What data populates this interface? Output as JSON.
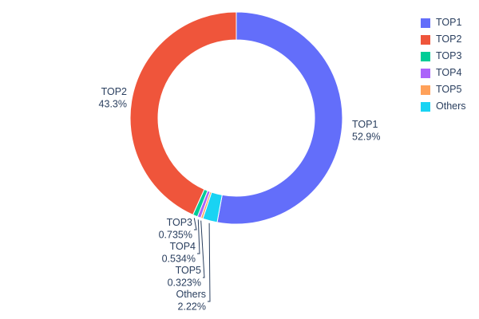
{
  "chart_data": {
    "type": "pie",
    "hole": 0.74,
    "title": "",
    "legend_position": "right",
    "background_color": "#ffffff",
    "text_color": "#2a3f5f",
    "labels": [
      "TOP1",
      "TOP2",
      "TOP3",
      "TOP4",
      "TOP5",
      "Others"
    ],
    "values": [
      52.9,
      43.3,
      0.735,
      0.534,
      0.323,
      2.22
    ],
    "slices_clockwise_from_top": [
      {
        "label": "TOP1",
        "value": 52.9,
        "percent_label": "52.9%",
        "color": "#636efa"
      },
      {
        "label": "Others",
        "value": 2.22,
        "percent_label": "2.22%",
        "color": "#19d3f3"
      },
      {
        "label": "TOP5",
        "value": 0.323,
        "percent_label": "0.323%",
        "color": "#ffa15a"
      },
      {
        "label": "TOP4",
        "value": 0.534,
        "percent_label": "0.534%",
        "color": "#ab63fa"
      },
      {
        "label": "TOP3",
        "value": 0.735,
        "percent_label": "0.735%",
        "color": "#00cc96"
      },
      {
        "label": "TOP2",
        "value": 43.3,
        "percent_label": "43.3%",
        "color": "#ef553b"
      }
    ],
    "legend_items": [
      {
        "label": "TOP1",
        "color": "#636efa"
      },
      {
        "label": "TOP2",
        "color": "#ef553b"
      },
      {
        "label": "TOP3",
        "color": "#00cc96"
      },
      {
        "label": "TOP4",
        "color": "#ab63fa"
      },
      {
        "label": "TOP5",
        "color": "#ffa15a"
      },
      {
        "label": "Others",
        "color": "#19d3f3"
      }
    ]
  }
}
